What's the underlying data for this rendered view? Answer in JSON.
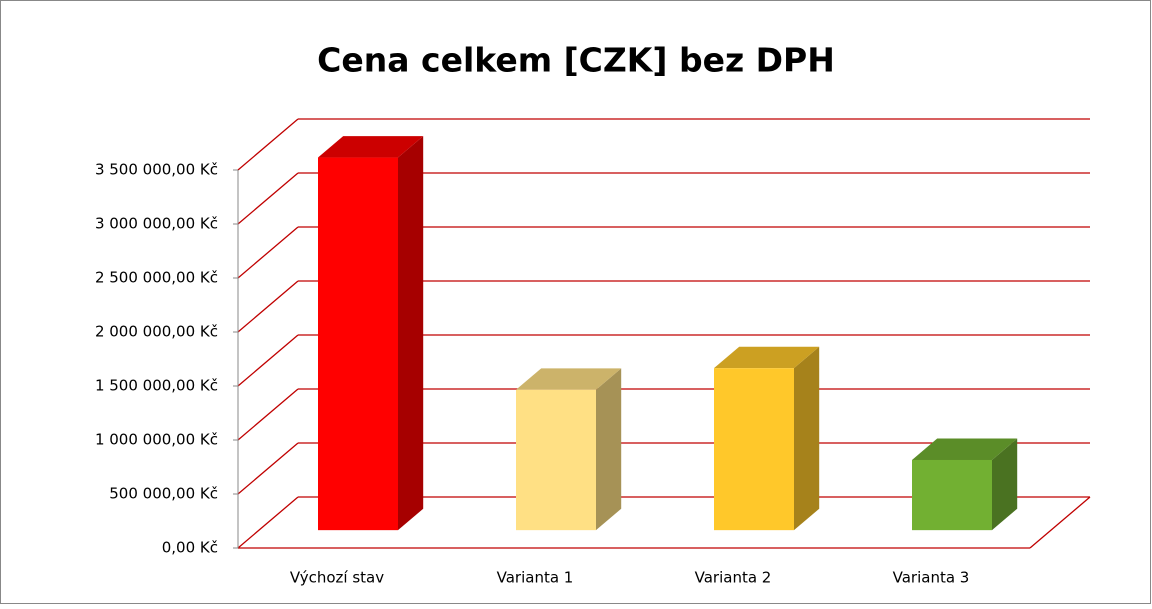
{
  "chart_data": {
    "type": "bar3d",
    "title": "Cena celkem [CZK] bez DPH",
    "categories": [
      "Výchozí stav",
      "Varianta 1",
      "Varianta 2",
      "Varianta 3"
    ],
    "values": [
      3450000,
      1300000,
      1500000,
      650000
    ],
    "colors": [
      "#ff0000",
      "#ffe084",
      "#ffc82a",
      "#72b032"
    ],
    "ylim": [
      0,
      3500000
    ],
    "yticks": [
      {
        "value": 0,
        "label": "0,00 Kč"
      },
      {
        "value": 500000,
        "label": "500 000,00 Kč"
      },
      {
        "value": 1000000,
        "label": "1 000 000,00 Kč"
      },
      {
        "value": 1500000,
        "label": "1 500 000,00 Kč"
      },
      {
        "value": 2000000,
        "label": "2 000 000,00 Kč"
      },
      {
        "value": 2500000,
        "label": "2 500 000,00 Kč"
      },
      {
        "value": 3000000,
        "label": "3 000 000,00 Kč"
      },
      {
        "value": 3500000,
        "label": "3 500 000,00 Kč"
      }
    ],
    "grid": true,
    "grid_color": "#c00000"
  }
}
